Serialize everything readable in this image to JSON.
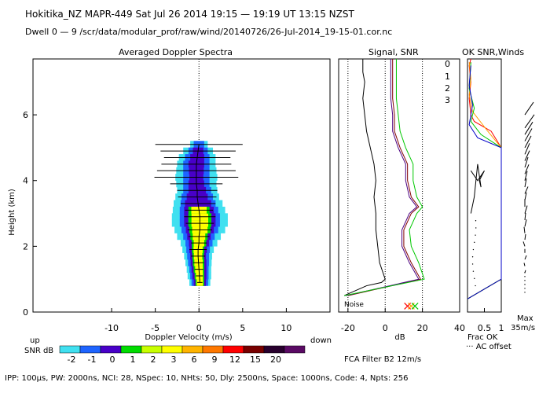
{
  "header": {
    "line1": "Hokitika_NZ   MAPR-449   Sat Jul 26 2014 19:15 — 19:19 UT 13:15 NZST",
    "line2": "Dwell  0 —  9   /scr/data/modular_prof/raw/wind/20140726/26-Jul-2014_19-15-01.cor.nc"
  },
  "footer": {
    "params": "IPP: 100µs,   PW: 2000ns,   NCI:  28,   NSpec: 10,  NHts: 50,   Dly: 2500ns,   Space: 1000ns,   Code: 4,   Npts: 256",
    "fca": "FCA Filter B2 12m/s"
  },
  "colorbar": {
    "label": "SNR dB",
    "ticks": [
      "-2",
      "-1",
      "0",
      "1",
      "2",
      "3",
      "6",
      "9",
      "12",
      "15",
      "20"
    ],
    "colors": [
      "#40e0f0",
      "#1e64ff",
      "#4800c8",
      "#00dc00",
      "#c8ff00",
      "#ffff00",
      "#ffb400",
      "#ff7800",
      "#ff0000",
      "#780000",
      "#28002d",
      "#5a0a64"
    ]
  },
  "series_colors": {
    "ch0": "#ff0000",
    "ch1": "#ffa000",
    "ch2": "#00c800",
    "ch3": "#0000c8",
    "raw": "#000000",
    "snr0": "#800000",
    "snr3": "#4b0082"
  },
  "chart_data": [
    {
      "type": "heatmap",
      "title": "Averaged Doppler Spectra",
      "xlabel": "Doppler Velocity (m/s)",
      "ylabel": "Height (km)",
      "xlim": [
        -19,
        15
      ],
      "ylim": [
        0,
        7.7
      ],
      "xticks": [
        -10,
        -5,
        0,
        5,
        10
      ],
      "yticks": [
        0,
        2,
        4,
        6
      ],
      "left_note": "up",
      "right_note": "down",
      "spectra": [
        {
          "h": 0.9,
          "c": 0.1,
          "w1": 0.45,
          "w2": 0.7,
          "w3": 0.95,
          "w4": 1.2,
          "core": 1,
          "err": 0.3
        },
        {
          "h": 1.1,
          "c": 0.05,
          "w1": 0.5,
          "w2": 0.8,
          "w3": 1.05,
          "w4": 1.35,
          "core": 1,
          "err": 0.4
        },
        {
          "h": 1.3,
          "c": 0.0,
          "w1": 0.55,
          "w2": 0.85,
          "w3": 1.1,
          "w4": 1.4,
          "core": 1,
          "err": 0.5
        },
        {
          "h": 1.5,
          "c": -0.05,
          "w1": 0.6,
          "w2": 0.9,
          "w3": 1.2,
          "w4": 1.5,
          "core": 1,
          "err": 0.6
        },
        {
          "h": 1.7,
          "c": -0.1,
          "w1": 0.6,
          "w2": 0.9,
          "w3": 1.25,
          "w4": 1.6,
          "core": 1,
          "err": 0.8
        },
        {
          "h": 1.9,
          "c": -0.1,
          "w1": 0.65,
          "w2": 1.0,
          "w3": 1.35,
          "w4": 1.8,
          "core": 1,
          "err": 1.0
        },
        {
          "h": 2.1,
          "c": 0.0,
          "w1": 0.75,
          "w2": 1.15,
          "w3": 1.55,
          "w4": 2.1,
          "core": 1,
          "err": 0.9
        },
        {
          "h": 2.3,
          "c": 0.0,
          "w1": 0.9,
          "w2": 1.35,
          "w3": 1.8,
          "w4": 2.5,
          "core": 1,
          "err": 1.2
        },
        {
          "h": 2.5,
          "c": 0.1,
          "w1": 1.1,
          "w2": 1.6,
          "w3": 2.1,
          "w4": 2.9,
          "core": 1,
          "err": 1.4
        },
        {
          "h": 2.7,
          "c": 0.1,
          "w1": 1.2,
          "w2": 1.8,
          "w3": 2.3,
          "w4": 3.2,
          "core": 1,
          "err": 1.6
        },
        {
          "h": 2.9,
          "c": 0.1,
          "w1": 1.2,
          "w2": 1.8,
          "w3": 2.3,
          "w4": 3.2,
          "core": 1,
          "err": 1.8
        },
        {
          "h": 3.1,
          "c": 0.0,
          "w1": 1.1,
          "w2": 1.7,
          "w3": 2.2,
          "w4": 3.0,
          "core": 1,
          "err": 1.6
        },
        {
          "h": 3.3,
          "c": -0.1,
          "w1": 0.9,
          "w2": 1.5,
          "w3": 2.0,
          "w4": 2.8,
          "core": 0,
          "err": 2.0
        },
        {
          "h": 3.5,
          "c": -0.2,
          "w1": 0.0,
          "w2": 1.2,
          "w3": 1.8,
          "w4": 2.5,
          "core": 0,
          "err": 2.2
        },
        {
          "h": 3.7,
          "c": -0.2,
          "w1": 0.0,
          "w2": 1.0,
          "w3": 1.6,
          "w4": 2.3,
          "core": 0,
          "err": 2.3
        },
        {
          "h": 3.9,
          "c": -0.3,
          "w1": 0.0,
          "w2": 0.9,
          "w3": 1.5,
          "w4": 2.3,
          "core": 0,
          "err": 3.0
        },
        {
          "h": 4.1,
          "c": -0.3,
          "w1": 0.0,
          "w2": 0.8,
          "w3": 1.5,
          "w4": 2.4,
          "core": 0,
          "err": 4.8
        },
        {
          "h": 4.3,
          "c": -0.3,
          "w1": 0.0,
          "w2": 0.85,
          "w3": 1.5,
          "w4": 2.3,
          "core": 0,
          "err": 4.5
        },
        {
          "h": 4.5,
          "c": -0.3,
          "w1": 0.0,
          "w2": 0.9,
          "w3": 1.5,
          "w4": 2.2,
          "core": 0,
          "err": 4.0
        },
        {
          "h": 4.7,
          "c": -0.2,
          "w1": 0.0,
          "w2": 0.8,
          "w3": 1.4,
          "w4": 2.1,
          "core": 0,
          "err": 3.8
        },
        {
          "h": 4.9,
          "c": -0.1,
          "w1": 0.0,
          "w2": 0.6,
          "w3": 1.1,
          "w4": 1.7,
          "core": 0,
          "err": 4.3
        },
        {
          "h": 5.1,
          "c": 0.0,
          "w1": 0.0,
          "w2": 0.0,
          "w3": 0.6,
          "w4": 1.0,
          "core": 0,
          "err": 5.0
        }
      ]
    },
    {
      "type": "line",
      "title": "Signal, SNR",
      "xlabel": "dB",
      "xlim": [
        -25,
        40
      ],
      "ylim": [
        0,
        7.7
      ],
      "xticks": [
        -20,
        0,
        20,
        40
      ],
      "noise_label": "Noise",
      "series": [
        {
          "name": "signal",
          "x": [
            -22,
            -10,
            -2,
            0,
            -3,
            -4,
            -5,
            -5,
            -6,
            -5,
            -6,
            -8,
            -10,
            -11,
            -12,
            -11,
            -12,
            -12,
            -12
          ],
          "y": [
            0.5,
            0.8,
            0.9,
            1.0,
            1.5,
            2.0,
            2.5,
            3.0,
            3.5,
            4.0,
            4.5,
            5.0,
            5.5,
            6.0,
            6.5,
            7.0,
            7.3,
            7.5,
            7.7
          ]
        },
        {
          "name": "snr0",
          "x": [
            -20,
            19,
            14,
            10,
            10,
            14,
            18,
            14,
            12,
            12,
            8,
            5,
            5,
            4,
            4,
            4,
            4
          ],
          "y": [
            0.5,
            1.0,
            1.5,
            2.0,
            2.5,
            3.0,
            3.2,
            3.5,
            4.0,
            4.5,
            5.0,
            5.5,
            6.0,
            6.5,
            7.0,
            7.3,
            7.7
          ]
        },
        {
          "name": "snr3",
          "x": [
            -21,
            18,
            13,
            9,
            9,
            13,
            17,
            13,
            11,
            11,
            7,
            4,
            4,
            3,
            3,
            3,
            3
          ],
          "y": [
            0.5,
            1.0,
            1.5,
            2.0,
            2.5,
            3.0,
            3.2,
            3.5,
            4.0,
            4.5,
            5.0,
            5.5,
            6.0,
            6.5,
            7.0,
            7.3,
            7.7
          ]
        },
        {
          "name": "snr2",
          "x": [
            -22,
            21,
            18,
            14,
            13,
            17,
            20,
            17,
            15,
            15,
            11,
            8,
            7,
            6,
            6,
            6,
            6
          ],
          "y": [
            0.5,
            1.0,
            1.5,
            2.0,
            2.5,
            3.0,
            3.2,
            3.5,
            4.0,
            4.5,
            5.0,
            5.5,
            6.0,
            6.5,
            7.0,
            7.3,
            7.7
          ]
        }
      ],
      "noise_markers": [
        {
          "x": 12,
          "y": 0.18,
          "name": "ch0"
        },
        {
          "x": 14,
          "y": 0.18,
          "name": "ch1"
        },
        {
          "x": 16,
          "y": 0.18,
          "name": "ch2"
        }
      ]
    },
    {
      "type": "line",
      "title": "OK SNR,Winds",
      "xlim": [
        0,
        1
      ],
      "ylim": [
        0,
        7.7
      ],
      "xtick_labels": [
        "0.5",
        "1"
      ],
      "footer1": "Frac OK",
      "footer2": "··· AC offset",
      "max_label": "Max",
      "max_value": "35m/s",
      "legend": [
        "0",
        "1",
        "2",
        "3"
      ],
      "series": [
        {
          "name": "ch0",
          "x": [
            0.0,
            1.0,
            1.0,
            0.7,
            0.2,
            0.1,
            0.05,
            0.1,
            0.05,
            0.1
          ],
          "y": [
            0.4,
            1.0,
            5.0,
            5.5,
            5.8,
            6.0,
            6.5,
            7.0,
            7.5,
            7.7
          ]
        },
        {
          "name": "ch1",
          "x": [
            0.0,
            1.0,
            1.0,
            0.6,
            0.3,
            0.15,
            0.05,
            0.1,
            0.05
          ],
          "y": [
            0.4,
            1.0,
            5.0,
            5.5,
            5.9,
            6.1,
            6.6,
            7.1,
            7.6
          ]
        },
        {
          "name": "ch2",
          "x": [
            0.0,
            1.0,
            1.0,
            0.4,
            0.1,
            0.2,
            0.05,
            0.1
          ],
          "y": [
            0.4,
            1.0,
            5.0,
            5.4,
            5.8,
            6.2,
            6.8,
            7.6
          ]
        },
        {
          "name": "ch3",
          "x": [
            0.0,
            1.0,
            1.0,
            0.3,
            0.05,
            0.15,
            0.05,
            0.1
          ],
          "y": [
            0.4,
            1.0,
            5.0,
            5.3,
            5.7,
            6.3,
            6.9,
            7.5
          ]
        },
        {
          "name": "sparse",
          "x": [
            0.1,
            0.3,
            0.5,
            0.35,
            0.4,
            0.3,
            0.2,
            0.1
          ],
          "y": [
            4.3,
            4.0,
            4.3,
            4.0,
            3.8,
            4.5,
            3.5,
            3.0
          ]
        }
      ],
      "winds": [
        {
          "h": 1.2,
          "u": 0.1,
          "v": 0.3
        },
        {
          "h": 1.4,
          "u": -0.1,
          "v": 0.4
        },
        {
          "h": 1.6,
          "u": 0.2,
          "v": 0.5
        },
        {
          "h": 1.8,
          "u": 0.0,
          "v": 0.5
        },
        {
          "h": 2.0,
          "u": -0.2,
          "v": 0.6
        },
        {
          "h": 2.2,
          "u": 0.1,
          "v": 0.7
        },
        {
          "h": 2.4,
          "u": -0.1,
          "v": 0.8
        },
        {
          "h": 2.6,
          "u": 0.2,
          "v": 0.9
        },
        {
          "h": 2.8,
          "u": 0.1,
          "v": 0.9
        },
        {
          "h": 3.0,
          "u": 0.3,
          "v": 1.0
        },
        {
          "h": 3.2,
          "u": 0.0,
          "v": 1.0
        },
        {
          "h": 3.4,
          "u": 0.2,
          "v": 1.0
        },
        {
          "h": 3.6,
          "u": 0.4,
          "v": 0.9
        },
        {
          "h": 3.8,
          "u": 0.2,
          "v": 1.1
        },
        {
          "h": 4.0,
          "u": 0.3,
          "v": 1.2
        },
        {
          "h": 4.2,
          "u": 0.5,
          "v": 1.2
        },
        {
          "h": 4.4,
          "u": 0.4,
          "v": 1.3
        },
        {
          "h": 4.6,
          "u": 0.6,
          "v": 1.3
        },
        {
          "h": 4.8,
          "u": 0.6,
          "v": 1.4
        },
        {
          "h": 5.0,
          "u": 0.8,
          "v": 1.5
        },
        {
          "h": 5.2,
          "u": 0.9,
          "v": 1.6
        },
        {
          "h": 5.4,
          "u": 1.0,
          "v": 1.6
        },
        {
          "h": 5.6,
          "u": 1.2,
          "v": 1.7
        },
        {
          "h": 6.0,
          "u": 1.1,
          "v": 1.6
        }
      ]
    }
  ]
}
